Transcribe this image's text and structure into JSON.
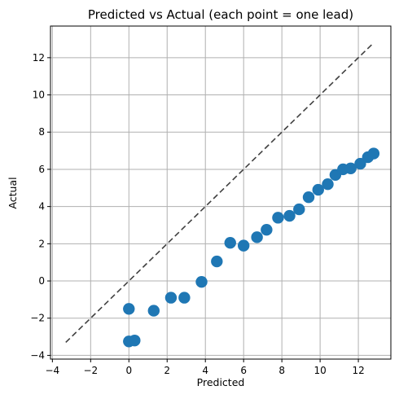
{
  "chart_data": {
    "type": "scatter",
    "title": "Predicted vs Actual (each point = one lead)",
    "xlabel": "Predicted",
    "ylabel": "Actual",
    "xlim": [
      -4.1,
      13.7
    ],
    "ylim": [
      -4.2,
      13.7
    ],
    "xticks": [
      -4,
      -2,
      0,
      2,
      4,
      6,
      8,
      10,
      12
    ],
    "yticks": [
      -4,
      -2,
      0,
      2,
      4,
      6,
      8,
      10,
      12
    ],
    "grid": true,
    "marker_color": "#1f77b4",
    "reference_line": {
      "style": "dashed",
      "color": "#404040",
      "x": [
        -3.3,
        12.7
      ],
      "y": [
        -3.3,
        12.7
      ]
    },
    "series": [
      {
        "x": [
          0.0,
          0.3,
          0.0,
          1.3,
          2.2,
          2.9,
          3.8,
          4.6,
          5.3,
          6.0,
          6.7,
          7.2,
          7.8,
          8.4,
          8.9,
          9.4,
          9.9,
          10.4,
          10.8,
          11.2,
          11.6,
          12.1,
          12.5,
          12.8
        ],
        "y": [
          -3.25,
          -3.2,
          -1.5,
          -1.6,
          -0.9,
          -0.9,
          -0.05,
          1.05,
          2.05,
          1.9,
          2.35,
          2.75,
          3.4,
          3.5,
          3.85,
          4.5,
          4.9,
          5.2,
          5.7,
          6.0,
          6.05,
          6.3,
          6.65,
          6.85
        ]
      }
    ]
  }
}
